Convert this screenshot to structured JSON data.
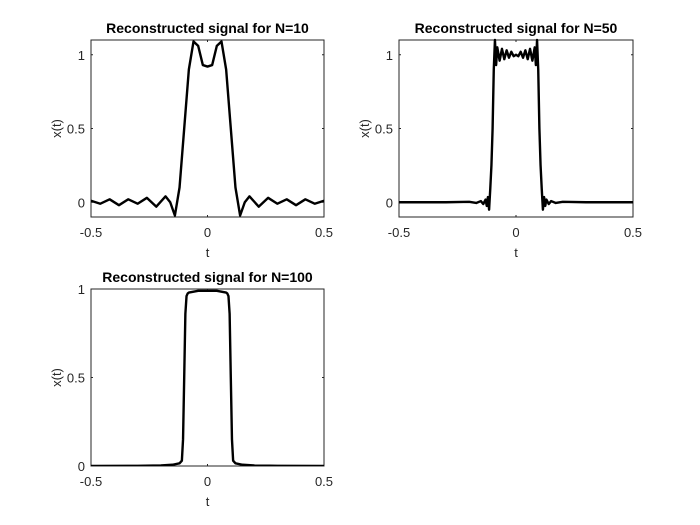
{
  "chart_data": [
    {
      "type": "line",
      "title": "Reconstructed signal for N=10",
      "xlabel": "t",
      "ylabel": "x(t)",
      "xlim": [
        -0.5,
        0.5
      ],
      "ylim": [
        -0.1,
        1.1
      ],
      "xticks": [
        "-0.5",
        "0",
        "0.5"
      ],
      "xtick_values": [
        -0.5,
        0,
        0.5
      ],
      "yticks": [
        "0",
        "0.5",
        "1"
      ],
      "ytick_values": [
        0,
        0.5,
        1
      ],
      "grid": false,
      "color": "#000000",
      "series": [
        {
          "x": [
            -0.5,
            -0.46,
            -0.42,
            -0.38,
            -0.34,
            -0.3,
            -0.26,
            -0.22,
            -0.18,
            -0.16,
            -0.14,
            -0.12,
            -0.1,
            -0.08,
            -0.06,
            -0.04,
            -0.02,
            0,
            0.02,
            0.04,
            0.06,
            0.08,
            0.1,
            0.12,
            0.14,
            0.16,
            0.18,
            0.22,
            0.26,
            0.3,
            0.34,
            0.38,
            0.42,
            0.46,
            0.5
          ],
          "y": [
            0.01,
            -0.01,
            0.02,
            -0.02,
            0.02,
            -0.01,
            0.03,
            -0.03,
            0.04,
            0.0,
            -0.09,
            0.1,
            0.5,
            0.9,
            1.09,
            1.06,
            0.93,
            0.92,
            0.93,
            1.06,
            1.09,
            0.9,
            0.5,
            0.1,
            -0.09,
            0.0,
            0.04,
            -0.03,
            0.03,
            -0.01,
            0.02,
            -0.02,
            0.02,
            -0.01,
            0.01
          ]
        }
      ]
    },
    {
      "type": "line",
      "title": "Reconstructed signal for N=50",
      "xlabel": "t",
      "ylabel": "x(t)",
      "xlim": [
        -0.5,
        0.5
      ],
      "ylim": [
        -0.1,
        1.1
      ],
      "xticks": [
        "-0.5",
        "0",
        "0.5"
      ],
      "xtick_values": [
        -0.5,
        0,
        0.5
      ],
      "yticks": [
        "0",
        "0.5",
        "1"
      ],
      "ytick_values": [
        0,
        0.5,
        1
      ],
      "grid": false,
      "color": "#000000",
      "series": [
        {
          "x": [
            -0.5,
            -0.3,
            -0.2,
            -0.17,
            -0.15,
            -0.14,
            -0.13,
            -0.125,
            -0.12,
            -0.115,
            -0.11,
            -0.105,
            -0.1,
            -0.095,
            -0.09,
            -0.085,
            -0.08,
            -0.07,
            -0.06,
            -0.05,
            -0.04,
            -0.03,
            -0.02,
            -0.01,
            0,
            0.01,
            0.02,
            0.03,
            0.04,
            0.05,
            0.06,
            0.07,
            0.08,
            0.085,
            0.09,
            0.095,
            0.1,
            0.105,
            0.11,
            0.115,
            0.12,
            0.125,
            0.13,
            0.14,
            0.15,
            0.17,
            0.2,
            0.3,
            0.5
          ],
          "y": [
            0,
            0,
            0.003,
            -0.005,
            0.008,
            -0.012,
            0.018,
            -0.025,
            0.035,
            -0.05,
            0.09,
            0.25,
            0.5,
            0.9,
            1.1,
            0.93,
            1.05,
            0.96,
            1.04,
            0.97,
            1.03,
            0.98,
            1.02,
            0.99,
            1.0,
            0.99,
            1.02,
            0.98,
            1.03,
            0.97,
            1.04,
            0.96,
            1.05,
            0.93,
            1.1,
            0.9,
            0.5,
            0.25,
            0.09,
            -0.05,
            0.035,
            -0.025,
            0.018,
            -0.012,
            0.008,
            -0.005,
            0.003,
            0,
            0
          ]
        }
      ]
    },
    {
      "type": "line",
      "title": "Reconstructed signal for N=100",
      "xlabel": "t",
      "ylabel": "x(t)",
      "xlim": [
        -0.5,
        0.5
      ],
      "ylim": [
        0,
        1
      ],
      "xticks": [
        "-0.5",
        "0",
        "0.5"
      ],
      "xtick_values": [
        -0.5,
        0,
        0.5
      ],
      "yticks": [
        "0",
        "0.5",
        "1"
      ],
      "ytick_values": [
        0,
        0.5,
        1
      ],
      "grid": false,
      "color": "#000000",
      "series": [
        {
          "x": [
            -0.5,
            -0.3,
            -0.2,
            -0.15,
            -0.12,
            -0.11,
            -0.105,
            -0.1,
            -0.095,
            -0.09,
            -0.085,
            -0.08,
            -0.06,
            -0.04,
            -0.02,
            0,
            0.02,
            0.04,
            0.06,
            0.08,
            0.085,
            0.09,
            0.095,
            0.1,
            0.105,
            0.11,
            0.12,
            0.15,
            0.2,
            0.3,
            0.5
          ],
          "y": [
            0.0,
            0.001,
            0.003,
            0.007,
            0.015,
            0.03,
            0.15,
            0.5,
            0.86,
            0.96,
            0.975,
            0.98,
            0.985,
            0.99,
            0.99,
            0.99,
            0.99,
            0.99,
            0.985,
            0.98,
            0.975,
            0.96,
            0.86,
            0.5,
            0.15,
            0.03,
            0.015,
            0.007,
            0.003,
            0.001,
            0.0
          ]
        }
      ]
    }
  ]
}
